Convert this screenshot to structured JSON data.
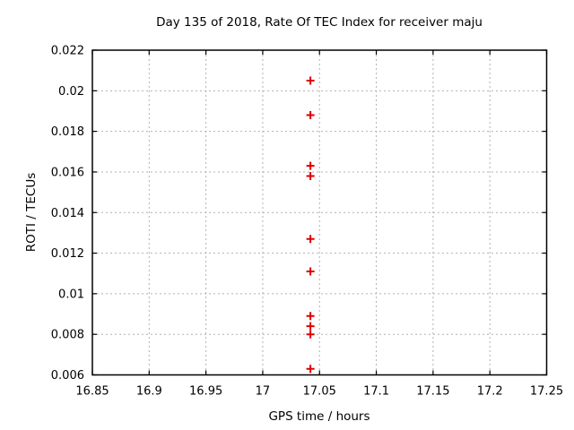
{
  "chart_data": {
    "type": "scatter",
    "title": "Day 135 of 2018, Rate Of TEC Index for receiver maju",
    "xlabel": "GPS time / hours",
    "ylabel": "ROTI / TECUs",
    "xlim": [
      16.85,
      17.25
    ],
    "ylim": [
      0.006,
      0.022
    ],
    "xticks": {
      "values": [
        16.85,
        16.9,
        16.95,
        17,
        17.05,
        17.1,
        17.15,
        17.2,
        17.25
      ],
      "labels": [
        "16.85",
        "16.9",
        "16.95",
        "17",
        "17.05",
        "17.1",
        "17.15",
        "17.2",
        "17.25"
      ]
    },
    "yticks": {
      "values": [
        0.006,
        0.008,
        0.01,
        0.012,
        0.014,
        0.016,
        0.018,
        0.02,
        0.022
      ],
      "labels": [
        "0.006",
        "0.008",
        "0.01",
        "0.012",
        "0.014",
        "0.016",
        "0.018",
        "0.02",
        "0.022"
      ]
    },
    "grid": true,
    "legend": "none",
    "marker": "plus",
    "points": {
      "x": [
        17.042,
        17.042,
        17.042,
        17.042,
        17.042,
        17.042,
        17.042,
        17.042,
        17.042,
        17.042
      ],
      "y": [
        0.0205,
        0.0188,
        0.0163,
        0.0158,
        0.0127,
        0.0111,
        0.0089,
        0.0084,
        0.008,
        0.0063
      ]
    },
    "colors": {
      "marker": "#dd0000",
      "grid": "#b0b0b0",
      "border": "#000000",
      "text": "#000000",
      "background": "#ffffff"
    }
  }
}
